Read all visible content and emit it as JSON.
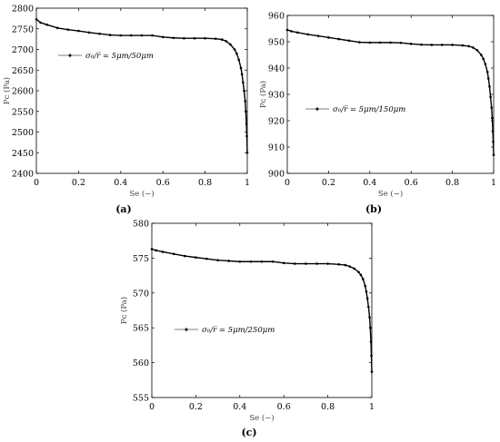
{
  "chart_data": [
    {
      "type": "line",
      "panel_label": "(a)",
      "xlabel": "Se (−)",
      "ylabel": "Pᴄ (Pa)",
      "xlim": [
        0,
        1
      ],
      "ylim": [
        2400,
        2800
      ],
      "xticks": [
        "0",
        "0.2",
        "0.4",
        "0.6",
        "0.8",
        "1"
      ],
      "yticks": [
        "2400",
        "2450",
        "2500",
        "2550",
        "2600",
        "2650",
        "2700",
        "2750",
        "2800"
      ],
      "legend": "σ₀/r̅ = 5μm/50μm",
      "legend_position": "upper-left",
      "grid": false,
      "series": [
        {
          "name": "σ₀/r̅ = 5μm/50μm",
          "x": [
            0.0,
            0.02,
            0.05,
            0.1,
            0.15,
            0.2,
            0.25,
            0.3,
            0.35,
            0.4,
            0.45,
            0.5,
            0.55,
            0.6,
            0.65,
            0.7,
            0.75,
            0.8,
            0.85,
            0.88,
            0.9,
            0.92,
            0.94,
            0.95,
            0.96,
            0.97,
            0.975,
            0.98,
            0.985,
            0.99,
            0.993,
            0.996,
            0.998,
            1.0
          ],
          "y": [
            2773,
            2765,
            2760,
            2752,
            2748,
            2745,
            2741,
            2738,
            2735,
            2734,
            2734,
            2734,
            2734,
            2730,
            2728,
            2727,
            2727,
            2727,
            2726,
            2724,
            2720,
            2712,
            2700,
            2690,
            2675,
            2655,
            2640,
            2620,
            2600,
            2575,
            2550,
            2520,
            2490,
            2450
          ]
        }
      ]
    },
    {
      "type": "line",
      "panel_label": "(b)",
      "xlabel": "Se (−)",
      "ylabel": "Pᴄ (Pa)",
      "xlim": [
        0,
        1
      ],
      "ylim": [
        900,
        960
      ],
      "xticks": [
        "0",
        "0.2",
        "0.4",
        "0.6",
        "0.8",
        "1"
      ],
      "yticks": [
        "900",
        "910",
        "920",
        "930",
        "940",
        "950",
        "960"
      ],
      "legend": "σ₀/r̅ = 5μm/150μm",
      "legend_position": "center-left",
      "grid": false,
      "series": [
        {
          "name": "σ₀/r̅ = 5μm/150μm",
          "x": [
            0.0,
            0.02,
            0.05,
            0.1,
            0.15,
            0.2,
            0.25,
            0.3,
            0.35,
            0.4,
            0.45,
            0.5,
            0.55,
            0.6,
            0.65,
            0.7,
            0.75,
            0.8,
            0.85,
            0.88,
            0.9,
            0.92,
            0.94,
            0.95,
            0.96,
            0.97,
            0.975,
            0.98,
            0.985,
            0.99,
            0.993,
            0.996,
            0.998,
            1.0
          ],
          "y": [
            954.5,
            954,
            953.5,
            952.8,
            952.2,
            951.6,
            951,
            950.4,
            949.8,
            949.7,
            949.7,
            949.7,
            949.6,
            949.2,
            948.9,
            948.8,
            948.8,
            948.8,
            948.6,
            948.3,
            947.8,
            946.8,
            945,
            943.5,
            941.5,
            938.5,
            936,
            933,
            929,
            925,
            921,
            916,
            912,
            907
          ]
        }
      ]
    },
    {
      "type": "line",
      "panel_label": "(c)",
      "xlabel": "Se (−)",
      "ylabel": "Pᴄ (Pa)",
      "xlim": [
        0,
        1
      ],
      "ylim": [
        555,
        580
      ],
      "xticks": [
        "0",
        "0.2",
        "0.4",
        "0.6",
        "0.8",
        "1"
      ],
      "yticks": [
        "555",
        "560",
        "565",
        "570",
        "575",
        "580"
      ],
      "legend": "σ₀/r̅ = 5μm/250μm",
      "legend_position": "center-left",
      "grid": false,
      "series": [
        {
          "name": "σ₀/r̅ = 5μm/250μm",
          "x": [
            0.0,
            0.02,
            0.05,
            0.1,
            0.15,
            0.2,
            0.25,
            0.3,
            0.35,
            0.4,
            0.45,
            0.5,
            0.55,
            0.6,
            0.65,
            0.7,
            0.75,
            0.8,
            0.85,
            0.88,
            0.9,
            0.92,
            0.94,
            0.95,
            0.96,
            0.97,
            0.975,
            0.98,
            0.985,
            0.99,
            0.993,
            0.996,
            0.998,
            1.0
          ],
          "y": [
            576.3,
            576.1,
            575.9,
            575.6,
            575.3,
            575.1,
            574.9,
            574.7,
            574.6,
            574.5,
            574.5,
            574.5,
            574.5,
            574.3,
            574.2,
            574.2,
            574.2,
            574.2,
            574.1,
            574.0,
            573.8,
            573.5,
            573.0,
            572.6,
            572.0,
            571.0,
            570.2,
            569.2,
            568.0,
            566.5,
            565.0,
            563.0,
            561.0,
            558.7
          ]
        }
      ]
    }
  ]
}
